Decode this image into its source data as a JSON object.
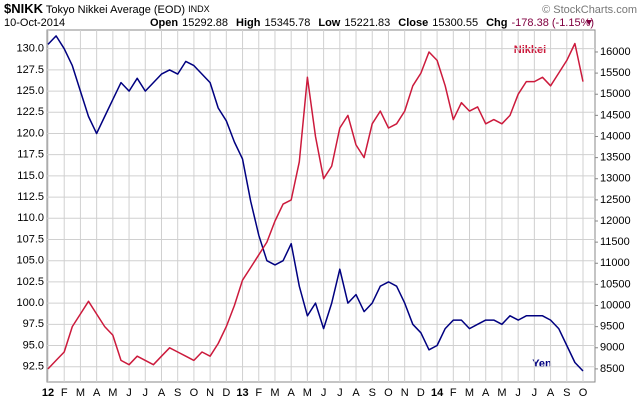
{
  "chart_data": {
    "type": "line",
    "header": {
      "symbol": "$NIKK",
      "name": "Tokyo Nikkei Average (EOD)",
      "exchange": "INDX",
      "date": "10-Oct-2014",
      "quote": [
        {
          "label": "Open",
          "value": "15292.88"
        },
        {
          "label": "High",
          "value": "15345.78"
        },
        {
          "label": "Low",
          "value": "15221.83"
        },
        {
          "label": "Close",
          "value": "15300.55"
        },
        {
          "label": "Chg",
          "value": "-178.38 (-1.15%)"
        }
      ],
      "credit": "© StockCharts.com"
    },
    "categories": [
      "12",
      null,
      "F",
      null,
      "M",
      null,
      "A",
      null,
      "M",
      null,
      "J",
      null,
      "J",
      null,
      "A",
      null,
      "S",
      null,
      "O",
      null,
      "N",
      null,
      "D",
      null,
      "13",
      null,
      "F",
      null,
      "M",
      null,
      "A",
      null,
      "M",
      null,
      "J",
      null,
      "J",
      null,
      "A",
      null,
      "S",
      null,
      "O",
      null,
      "N",
      null,
      "D",
      null,
      "14",
      null,
      "F",
      null,
      "M",
      null,
      "A",
      null,
      "M",
      null,
      "J",
      null,
      "J",
      null,
      "A",
      null,
      "S",
      null,
      "O"
    ],
    "series": [
      {
        "name": "Yen",
        "color": "#000080",
        "axis": "y",
        "values": [
          130.5,
          131.5,
          130,
          128,
          125,
          122,
          120,
          122,
          124,
          126,
          125,
          126.5,
          125,
          126,
          127,
          127.5,
          127,
          128.5,
          128,
          127,
          126,
          123,
          121.5,
          119,
          117,
          112,
          108,
          105,
          104.5,
          105,
          107,
          102,
          98.5,
          100,
          97,
          100,
          104,
          100,
          101,
          99,
          100,
          102,
          102.5,
          102,
          100,
          97.5,
          96.5,
          94.5,
          95,
          97,
          98,
          98,
          97,
          97.5,
          98,
          98,
          97.5,
          98.5,
          98,
          98.5,
          98.5,
          98.5,
          98,
          97,
          95,
          93,
          92
        ]
      },
      {
        "name": "Nikkei",
        "color": "#cc1a3c",
        "axis": "y2",
        "values": [
          8500,
          8700,
          8900,
          9500,
          9800,
          10100,
          9800,
          9500,
          9300,
          8700,
          8600,
          8800,
          8700,
          8600,
          8800,
          9000,
          8900,
          8800,
          8700,
          8900,
          8800,
          9100,
          9500,
          10000,
          10600,
          10900,
          11200,
          11500,
          12000,
          12400,
          12500,
          13400,
          15400,
          14000,
          13000,
          13300,
          14200,
          14500,
          13800,
          13500,
          14300,
          14600,
          14200,
          14300,
          14600,
          15200,
          15500,
          16000,
          15800,
          15200,
          14400,
          14800,
          14600,
          14700,
          14300,
          14400,
          14300,
          14500,
          15000,
          15300,
          15300,
          15400,
          15200,
          15500,
          15800,
          16200,
          15300
        ]
      }
    ],
    "ylim": [
      90.7,
      132.2
    ],
    "yticks": [
      92.5,
      {
        "value": 95,
        "label": "95.0"
      },
      97.5,
      {
        "value": 100,
        "label": "100.0"
      },
      102.5,
      {
        "value": 105,
        "label": "105.0"
      },
      107.5,
      {
        "value": 110,
        "label": "110.0"
      },
      112.5,
      {
        "value": 115,
        "label": "115.0"
      },
      117.5,
      {
        "value": 120,
        "label": "120.0"
      },
      122.5,
      {
        "value": 125,
        "label": "125.0"
      },
      127.5,
      {
        "value": 130,
        "label": "130.0"
      }
    ],
    "y2lim": [
      8190,
      16520
    ],
    "y2ticks": [
      8500,
      9000,
      9500,
      10000,
      10500,
      11000,
      11500,
      12000,
      12500,
      13000,
      13500,
      14000,
      14500,
      15000,
      15500,
      16000
    ],
    "grid": true
  }
}
